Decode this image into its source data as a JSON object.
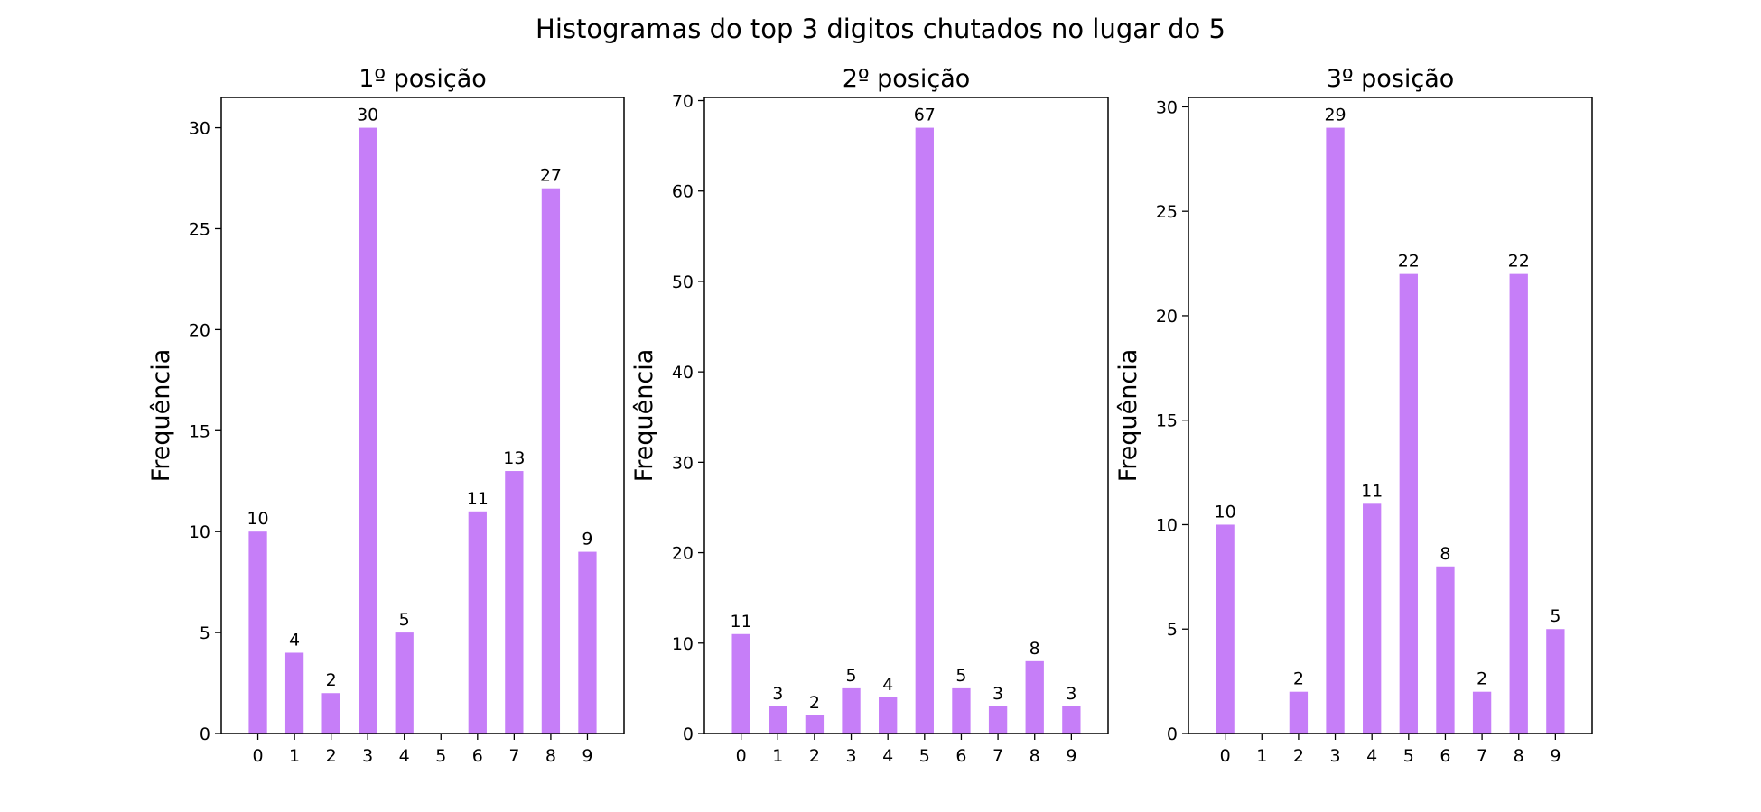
{
  "figure_title": "Histogramas do top 3 digitos chutados no lugar do 5",
  "colors": {
    "bar": "#c67ef8"
  },
  "chart_data": [
    {
      "type": "bar",
      "title": "1º posição",
      "xlabel": "",
      "ylabel": "Frequência",
      "categories": [
        "0",
        "1",
        "2",
        "3",
        "4",
        "5",
        "6",
        "7",
        "8",
        "9"
      ],
      "values": [
        10,
        4,
        2,
        30,
        5,
        0,
        11,
        13,
        27,
        9
      ],
      "data_labels": [
        "10",
        "4",
        "2",
        "30",
        "5",
        "",
        "11",
        "13",
        "27",
        "9"
      ],
      "yticks": [
        0,
        5,
        10,
        15,
        20,
        25,
        30
      ],
      "ylim": [
        0,
        31.5
      ],
      "grid": false,
      "legend": "none"
    },
    {
      "type": "bar",
      "title": "2º posição",
      "xlabel": "",
      "ylabel": "Frequência",
      "categories": [
        "0",
        "1",
        "2",
        "3",
        "4",
        "5",
        "6",
        "7",
        "8",
        "9"
      ],
      "values": [
        11,
        3,
        2,
        5,
        4,
        67,
        5,
        3,
        8,
        3
      ],
      "data_labels": [
        "11",
        "3",
        "2",
        "5",
        "4",
        "67",
        "5",
        "3",
        "8",
        "3"
      ],
      "yticks": [
        0,
        10,
        20,
        30,
        40,
        50,
        60,
        70
      ],
      "ylim": [
        0,
        70.35
      ],
      "grid": false,
      "legend": "none"
    },
    {
      "type": "bar",
      "title": "3º posição",
      "xlabel": "",
      "ylabel": "Frequência",
      "categories": [
        "0",
        "1",
        "2",
        "3",
        "4",
        "5",
        "6",
        "7",
        "8",
        "9"
      ],
      "values": [
        10,
        0,
        2,
        29,
        11,
        22,
        8,
        2,
        22,
        5
      ],
      "data_labels": [
        "10",
        "",
        "2",
        "29",
        "11",
        "22",
        "8",
        "2",
        "22",
        "5"
      ],
      "yticks": [
        0,
        5,
        10,
        15,
        20,
        25,
        30
      ],
      "ylim": [
        0,
        30.45
      ],
      "grid": false,
      "legend": "none"
    }
  ]
}
